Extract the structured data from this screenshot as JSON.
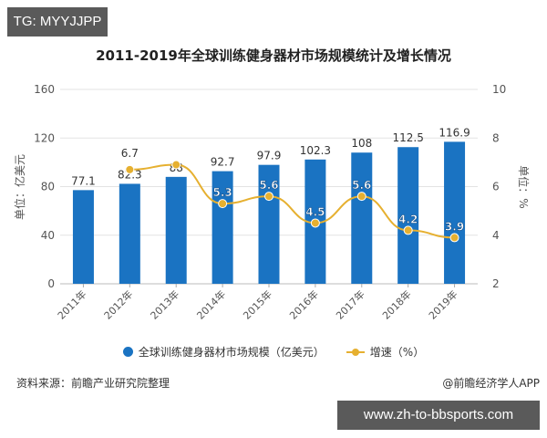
{
  "overlay": {
    "tg_label": "TG: MYYJJPP",
    "url_label": "www.zh-to-bbsports.com"
  },
  "colors": {
    "bar": "#1a73c2",
    "line": "#e6b030",
    "grid": "#e3e3e3",
    "axis_text": "#555555"
  },
  "chart_data": {
    "type": "bar+line",
    "title": "2011-2019年全球训练健身器材市场规模统计及增长情况",
    "categories": [
      "2011年",
      "2012年",
      "2013年",
      "2014年",
      "2015年",
      "2016年",
      "2017年",
      "2018年",
      "2019年"
    ],
    "series": [
      {
        "name": "全球训练健身器材市场规模（亿美元）",
        "type": "bar",
        "axis": "left",
        "values": [
          77.1,
          82.3,
          88,
          92.7,
          97.9,
          102.3,
          108,
          112.5,
          116.9
        ],
        "labels": [
          "77.1",
          "82.3",
          "88",
          "92.7",
          "97.9",
          "102.3",
          "108",
          "112.5",
          "116.9"
        ]
      },
      {
        "name": "增速（%）",
        "type": "line",
        "axis": "right",
        "values": [
          null,
          6.7,
          6.9,
          5.3,
          5.6,
          4.5,
          5.6,
          4.2,
          3.9
        ],
        "labels": [
          "",
          "6.7",
          "",
          "5.3",
          "5.6",
          "4.5",
          "5.6",
          "4.2",
          "3.9"
        ]
      }
    ],
    "ylabel": "单位：亿美元",
    "y2label": "单位：%",
    "ylim": [
      0,
      160
    ],
    "y2lim": [
      2,
      10
    ],
    "yticks": [
      "0",
      "40",
      "80",
      "120",
      "160"
    ],
    "y2ticks": [
      "2",
      "4",
      "6",
      "8",
      "10"
    ],
    "legend_position": "bottom",
    "grid": true
  },
  "legend": {
    "bar_label": "全球训练健身器材市场规模（亿美元）",
    "line_label": "增速（%）"
  },
  "footer": {
    "source": "资料来源：前瞻产业研究院整理",
    "credit": "@前瞻经济学人APP"
  }
}
